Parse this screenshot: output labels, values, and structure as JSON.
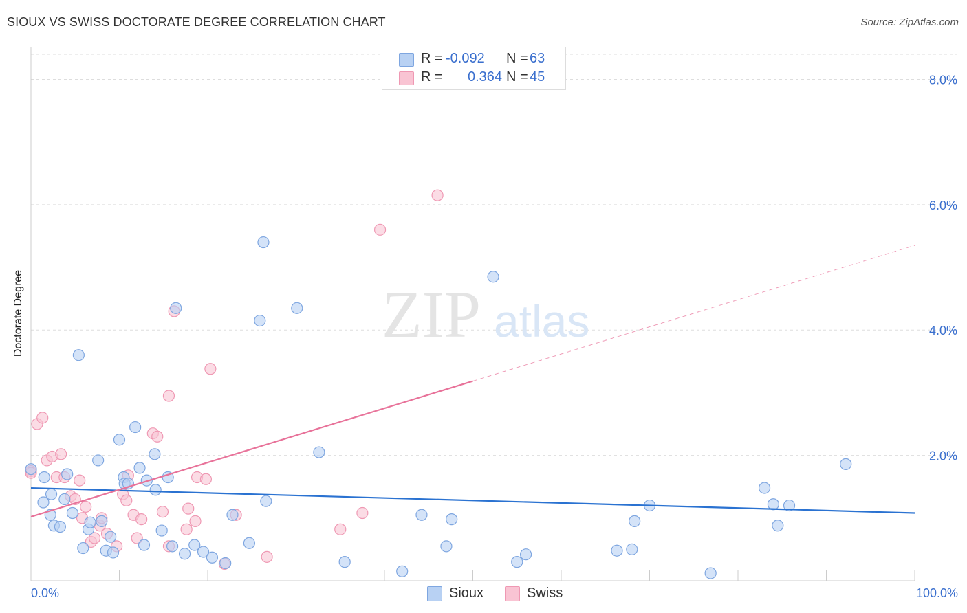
{
  "title": "SIOUX VS SWISS DOCTORATE DEGREE CORRELATION CHART",
  "source": "Source: ZipAtlas.com",
  "watermark": {
    "zip": "ZIP",
    "atlas": "atlas"
  },
  "legend": {
    "r_label": "R =",
    "n_label": "N =",
    "rows": [
      {
        "name": "Sioux",
        "r": "-0.092",
        "n": "63"
      },
      {
        "name": "Swiss",
        "r": "0.364",
        "n": "45"
      }
    ]
  },
  "colors": {
    "sioux_fill": "#b8d1f3",
    "sioux_stroke": "#7ea6e0",
    "sioux_line": "#2a72d1",
    "swiss_fill": "#f9c4d3",
    "swiss_stroke": "#ef98b3",
    "swiss_line": "#e8739a",
    "axis_text": "#3a6fce"
  },
  "chart_data": {
    "type": "scatter",
    "title": "SIOUX VS SWISS DOCTORATE DEGREE CORRELATION CHART",
    "xlabel": "",
    "ylabel": "Doctorate Degree",
    "xlim": [
      0,
      100
    ],
    "ylim": [
      0,
      8.4
    ],
    "x_tick_labels": [
      "0.0%",
      "100.0%"
    ],
    "y_ticks": [
      2,
      4,
      6,
      8
    ],
    "y_tick_labels": [
      "2.0%",
      "4.0%",
      "6.0%",
      "8.0%"
    ],
    "grid": true,
    "series": [
      {
        "name": "Sioux",
        "trend": {
          "x": [
            0,
            100
          ],
          "y": [
            1.48,
            1.08
          ],
          "dashed_from": null
        },
        "points": [
          [
            0.0,
            1.78
          ],
          [
            1.5,
            1.65
          ],
          [
            2.3,
            1.38
          ],
          [
            1.4,
            1.25
          ],
          [
            2.2,
            1.05
          ],
          [
            2.6,
            0.88
          ],
          [
            3.3,
            0.86
          ],
          [
            4.1,
            1.7
          ],
          [
            3.8,
            1.3
          ],
          [
            4.7,
            1.08
          ],
          [
            5.4,
            3.6
          ],
          [
            6.5,
            0.82
          ],
          [
            5.9,
            0.52
          ],
          [
            6.7,
            0.93
          ],
          [
            7.6,
            1.92
          ],
          [
            8.0,
            0.95
          ],
          [
            8.5,
            0.48
          ],
          [
            9.0,
            0.7
          ],
          [
            9.3,
            0.45
          ],
          [
            10.0,
            2.25
          ],
          [
            10.5,
            1.65
          ],
          [
            10.6,
            1.55
          ],
          [
            11.0,
            1.55
          ],
          [
            11.8,
            2.45
          ],
          [
            12.3,
            1.8
          ],
          [
            12.8,
            0.57
          ],
          [
            13.1,
            1.6
          ],
          [
            14.0,
            2.02
          ],
          [
            14.1,
            1.45
          ],
          [
            14.8,
            0.8
          ],
          [
            15.5,
            1.65
          ],
          [
            16.0,
            0.55
          ],
          [
            16.4,
            4.35
          ],
          [
            17.4,
            0.43
          ],
          [
            18.5,
            0.57
          ],
          [
            19.5,
            0.46
          ],
          [
            20.5,
            0.37
          ],
          [
            22.0,
            0.28
          ],
          [
            22.8,
            1.05
          ],
          [
            24.7,
            0.6
          ],
          [
            25.9,
            4.15
          ],
          [
            26.3,
            5.4
          ],
          [
            26.6,
            1.27
          ],
          [
            30.1,
            4.35
          ],
          [
            32.6,
            2.05
          ],
          [
            35.5,
            0.3
          ],
          [
            42.0,
            0.15
          ],
          [
            44.2,
            1.05
          ],
          [
            47.0,
            0.55
          ],
          [
            47.6,
            0.98
          ],
          [
            52.3,
            4.85
          ],
          [
            55.0,
            0.3
          ],
          [
            56.0,
            0.42
          ],
          [
            66.3,
            0.48
          ],
          [
            68.0,
            0.5
          ],
          [
            68.3,
            0.95
          ],
          [
            70.0,
            1.2
          ],
          [
            76.9,
            0.12
          ],
          [
            83.0,
            1.48
          ],
          [
            84.0,
            1.22
          ],
          [
            84.5,
            0.88
          ],
          [
            85.8,
            1.2
          ],
          [
            92.2,
            1.86
          ]
        ]
      },
      {
        "name": "Swiss",
        "trend": {
          "x": [
            0,
            100
          ],
          "y": [
            1.02,
            5.35
          ],
          "dashed_from": 50
        },
        "points": [
          [
            0.0,
            1.75
          ],
          [
            0.7,
            2.5
          ],
          [
            1.3,
            2.6
          ],
          [
            1.8,
            1.92
          ],
          [
            2.4,
            1.98
          ],
          [
            3.4,
            2.02
          ],
          [
            2.9,
            1.65
          ],
          [
            3.8,
            1.65
          ],
          [
            4.5,
            1.35
          ],
          [
            5.0,
            1.3
          ],
          [
            5.5,
            1.6
          ],
          [
            5.8,
            1.0
          ],
          [
            6.2,
            1.18
          ],
          [
            6.8,
            0.62
          ],
          [
            7.2,
            0.68
          ],
          [
            7.8,
            0.88
          ],
          [
            8.0,
            1.0
          ],
          [
            8.6,
            0.75
          ],
          [
            9.7,
            0.55
          ],
          [
            10.4,
            1.38
          ],
          [
            10.8,
            1.28
          ],
          [
            11.0,
            1.68
          ],
          [
            11.6,
            1.05
          ],
          [
            12.0,
            0.68
          ],
          [
            12.5,
            0.98
          ],
          [
            13.8,
            2.35
          ],
          [
            14.3,
            2.3
          ],
          [
            14.9,
            1.1
          ],
          [
            15.6,
            2.95
          ],
          [
            15.6,
            0.55
          ],
          [
            16.2,
            4.3
          ],
          [
            17.6,
            0.82
          ],
          [
            17.8,
            1.15
          ],
          [
            18.6,
            0.95
          ],
          [
            18.8,
            1.65
          ],
          [
            19.8,
            1.62
          ],
          [
            20.3,
            3.38
          ],
          [
            21.9,
            0.27
          ],
          [
            23.2,
            1.05
          ],
          [
            26.7,
            0.38
          ],
          [
            35.0,
            0.82
          ],
          [
            37.5,
            1.08
          ],
          [
            39.5,
            5.6
          ],
          [
            46.0,
            6.15
          ],
          [
            0.0,
            1.72
          ]
        ]
      }
    ]
  }
}
